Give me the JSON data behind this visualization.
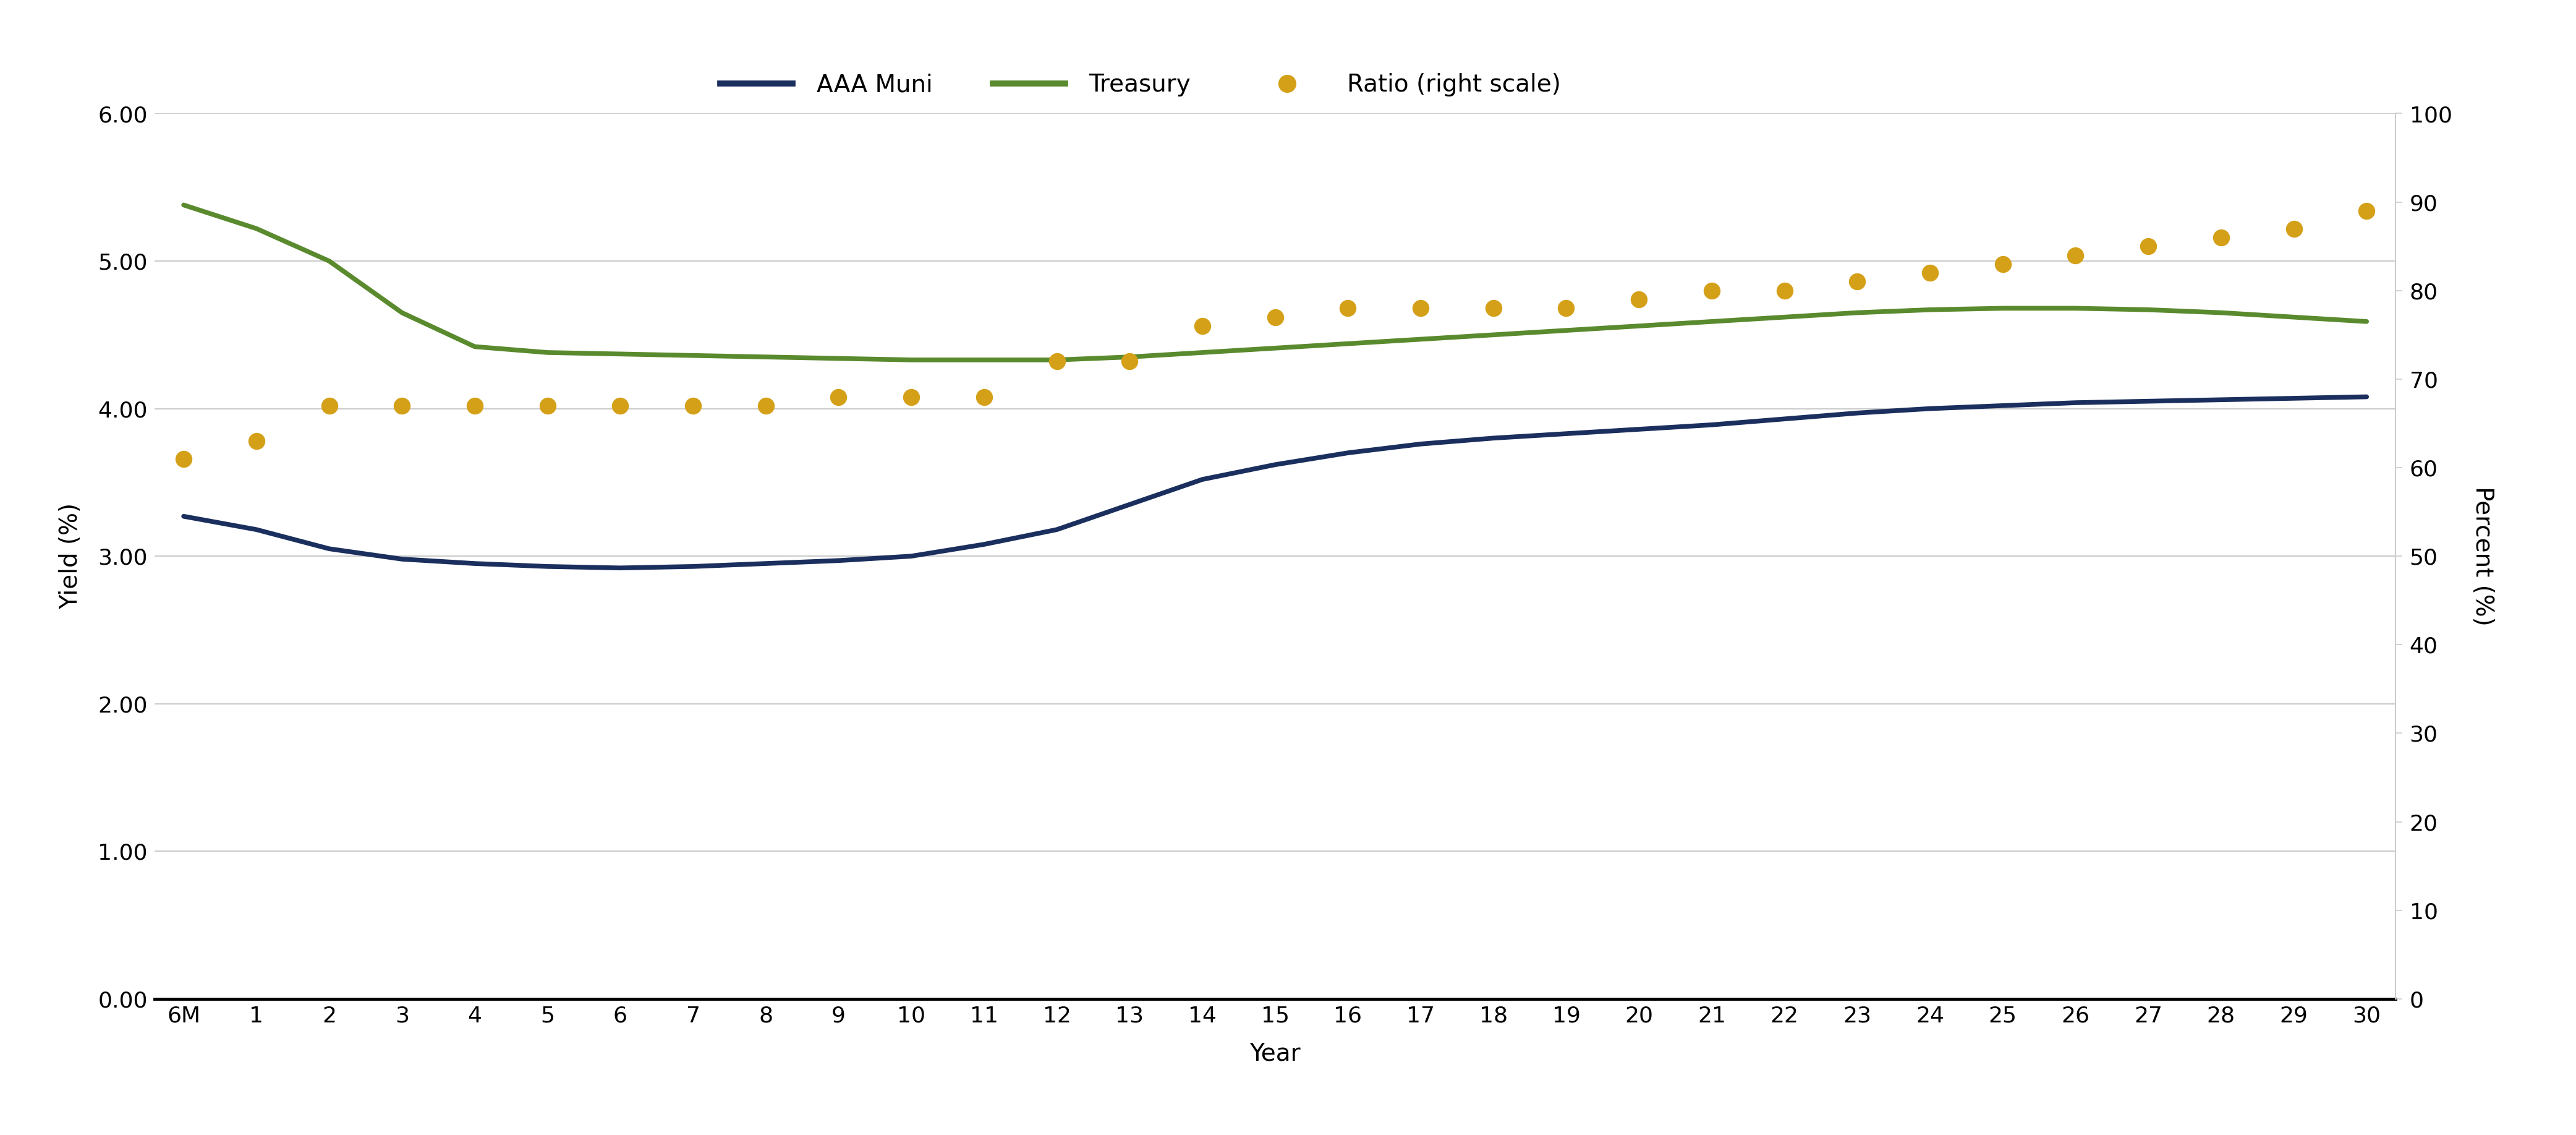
{
  "x_labels": [
    "6M",
    "1",
    "2",
    "3",
    "4",
    "5",
    "6",
    "7",
    "8",
    "9",
    "10",
    "11",
    "12",
    "13",
    "14",
    "15",
    "16",
    "17",
    "18",
    "19",
    "20",
    "21",
    "22",
    "23",
    "24",
    "25",
    "26",
    "27",
    "28",
    "29",
    "30"
  ],
  "x_positions": [
    0,
    1,
    2,
    3,
    4,
    5,
    6,
    7,
    8,
    9,
    10,
    11,
    12,
    13,
    14,
    15,
    16,
    17,
    18,
    19,
    20,
    21,
    22,
    23,
    24,
    25,
    26,
    27,
    28,
    29,
    30
  ],
  "aaa_muni": [
    3.27,
    3.18,
    3.05,
    2.98,
    2.95,
    2.93,
    2.92,
    2.93,
    2.95,
    2.97,
    3.0,
    3.08,
    3.18,
    3.35,
    3.52,
    3.62,
    3.7,
    3.76,
    3.8,
    3.83,
    3.86,
    3.89,
    3.93,
    3.97,
    4.0,
    4.02,
    4.04,
    4.05,
    4.06,
    4.07,
    4.08
  ],
  "treasury": [
    5.38,
    5.22,
    5.0,
    4.65,
    4.42,
    4.38,
    4.37,
    4.36,
    4.35,
    4.34,
    4.33,
    4.33,
    4.33,
    4.35,
    4.38,
    4.41,
    4.44,
    4.47,
    4.5,
    4.53,
    4.56,
    4.59,
    4.62,
    4.65,
    4.67,
    4.68,
    4.68,
    4.67,
    4.65,
    4.62,
    4.59
  ],
  "ratio": [
    61,
    63,
    67,
    67,
    67,
    67,
    67,
    67,
    67,
    68,
    68,
    68,
    72,
    72,
    76,
    77,
    78,
    78,
    78,
    78,
    79,
    80,
    80,
    81,
    82,
    83,
    84,
    85,
    86,
    87,
    89
  ],
  "aaa_color": "#1a2f5e",
  "treasury_color": "#5a8a2e",
  "ratio_color": "#d4a017",
  "ylabel_left": "Yield (%)",
  "ylabel_right": "Percent (%)",
  "xlabel": "Year",
  "ylim_left": [
    0.0,
    6.0
  ],
  "ylim_right": [
    0,
    100
  ],
  "yticks_left": [
    0.0,
    1.0,
    2.0,
    3.0,
    4.0,
    5.0,
    6.0
  ],
  "yticks_left_labels": [
    "0.00",
    "1.00",
    "2.00",
    "3.00",
    "4.00",
    "5.00",
    "6.00"
  ],
  "yticks_right": [
    0,
    10,
    20,
    30,
    40,
    50,
    60,
    70,
    80,
    90,
    100
  ],
  "grid_color": "#cccccc",
  "background_color": "#ffffff",
  "legend_labels": [
    "AAA Muni",
    "Treasury",
    "Ratio (right scale)"
  ],
  "axis_fontsize": 28,
  "tick_fontsize": 26,
  "legend_fontsize": 28,
  "line_width": 5.5,
  "dot_size": 350
}
